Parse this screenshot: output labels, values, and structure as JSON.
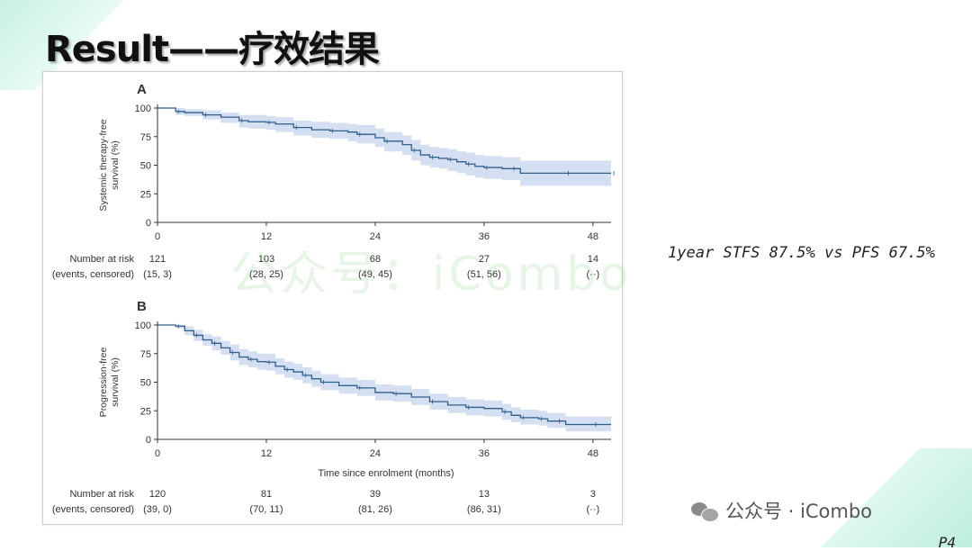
{
  "slide": {
    "title": "Result——疗效结果",
    "annotation": "1year STFS 87.5% vs PFS 67.5%",
    "watermark": "公众号：iCombo",
    "brand": "公众号 · iCombo",
    "brand_icon": "wechat-icon",
    "page_number": "P4"
  },
  "colors": {
    "curve": "#2f5f8c",
    "band": "#cdd9ef",
    "axis": "#333333"
  },
  "chart_data": [
    {
      "type": "line",
      "panel_label": "A",
      "title": "",
      "ylabel": [
        "Systemic therapy-free",
        "survival (%)"
      ],
      "xlabel": "",
      "xlim": [
        0,
        50
      ],
      "ylim": [
        0,
        100
      ],
      "x_ticks": [
        0,
        12,
        24,
        36,
        48
      ],
      "y_ticks": [
        0,
        25,
        50,
        75,
        100
      ],
      "series": [
        {
          "x": [
            0,
            2,
            3,
            5,
            7,
            9,
            10,
            12,
            13,
            15,
            17,
            19,
            21,
            22,
            24,
            25,
            27,
            28,
            29,
            30,
            31,
            32,
            33,
            34,
            35,
            36,
            38,
            39,
            40,
            45,
            48,
            50
          ],
          "y": [
            100,
            97,
            96,
            94,
            92,
            89,
            88,
            87.5,
            86,
            83,
            81,
            80,
            79,
            77,
            74,
            71,
            68,
            63,
            59,
            57,
            56,
            55,
            53,
            51,
            49,
            48,
            47,
            47,
            43,
            43,
            43,
            43
          ],
          "lower": [
            100,
            94,
            93,
            90,
            87,
            83,
            82,
            81,
            79,
            76,
            74,
            73,
            71,
            69,
            66,
            62,
            59,
            54,
            50,
            48,
            47,
            45,
            43,
            41,
            39,
            38,
            37,
            37,
            32,
            32,
            32,
            32
          ],
          "upper": [
            100,
            100,
            99,
            98,
            96,
            94,
            94,
            93,
            92,
            89,
            88,
            87,
            86,
            85,
            82,
            79,
            76,
            72,
            68,
            66,
            65,
            64,
            62,
            61,
            59,
            58,
            57,
            57,
            54,
            54,
            54,
            54
          ]
        }
      ],
      "risk_table": {
        "label": "Number at risk",
        "sublabel": "(events, censored)",
        "times": [
          0,
          12,
          24,
          36,
          48
        ],
        "at_risk": [
          "121",
          "103",
          "68",
          "27",
          "14"
        ],
        "events": [
          "(15, 3)",
          "(28, 25)",
          "(49, 45)",
          "(51, 56)",
          "(··)"
        ]
      }
    },
    {
      "type": "line",
      "panel_label": "B",
      "title": "",
      "ylabel": [
        "Progression-free",
        "survival (%)"
      ],
      "xlabel": "Time since enrolment (months)",
      "xlim": [
        0,
        50
      ],
      "ylim": [
        0,
        100
      ],
      "x_ticks": [
        0,
        12,
        24,
        36,
        48
      ],
      "y_ticks": [
        0,
        25,
        50,
        75,
        100
      ],
      "series": [
        {
          "x": [
            0,
            2,
            3,
            4,
            5,
            6,
            7,
            8,
            9,
            10,
            11,
            12,
            13,
            14,
            15,
            16,
            17,
            18,
            20,
            22,
            24,
            26,
            28,
            30,
            32,
            34,
            36,
            38,
            39,
            40,
            41,
            42,
            43,
            44,
            45,
            48,
            50
          ],
          "y": [
            100,
            99,
            95,
            91,
            87,
            84,
            80,
            76,
            72,
            70,
            68,
            67.5,
            64,
            61,
            59,
            56,
            53,
            50,
            47,
            45,
            41,
            40,
            37,
            33,
            30,
            28,
            27,
            24,
            21,
            19,
            19,
            18,
            16,
            16,
            13,
            13,
            13
          ],
          "lower": [
            100,
            97,
            91,
            86,
            82,
            78,
            74,
            69,
            65,
            63,
            61,
            60,
            57,
            54,
            52,
            49,
            46,
            43,
            40,
            38,
            34,
            33,
            30,
            26,
            23,
            21,
            20,
            17,
            15,
            13,
            13,
            12,
            10,
            10,
            7,
            7,
            7
          ],
          "upper": [
            100,
            100,
            99,
            96,
            92,
            90,
            86,
            83,
            79,
            77,
            75,
            75,
            71,
            68,
            66,
            63,
            60,
            57,
            54,
            52,
            48,
            47,
            44,
            40,
            37,
            35,
            34,
            31,
            28,
            26,
            26,
            25,
            23,
            23,
            20,
            20,
            20
          ]
        }
      ],
      "risk_table": {
        "label": "Number at risk",
        "sublabel": "(events, censored)",
        "times": [
          0,
          12,
          24,
          36,
          48
        ],
        "at_risk": [
          "120",
          "81",
          "39",
          "13",
          "3"
        ],
        "events": [
          "(39, 0)",
          "(70, 11)",
          "(81, 26)",
          "(86, 31)",
          "(··)"
        ]
      }
    }
  ]
}
